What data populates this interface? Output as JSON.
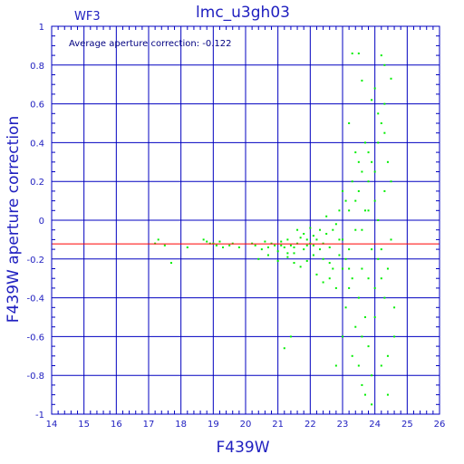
{
  "chart_data": {
    "type": "scatter",
    "title": "lmc_u3gh03",
    "subtitle": "WF3",
    "annotation": "Average aperture correction: -0.122",
    "xlabel": "F439W",
    "ylabel": "F439W aperture correction",
    "xlim": [
      14,
      26
    ],
    "ylim": [
      -1,
      1
    ],
    "xticks": [
      "14",
      "15",
      "16",
      "17",
      "18",
      "19",
      "20",
      "21",
      "22",
      "23",
      "24",
      "25",
      "26"
    ],
    "yticks": [
      "-1",
      "-0.8",
      "-0.6",
      "-0.4",
      "-0.2",
      "0",
      "0.2",
      "0.4",
      "0.6",
      "0.8",
      "1"
    ],
    "grid": true,
    "reference_line": {
      "y": -0.122,
      "color": "#ff0000"
    },
    "point_color": "#00ee00",
    "axis_color": "#0000c0",
    "points": [
      [
        17.2,
        -0.12
      ],
      [
        17.3,
        -0.1
      ],
      [
        17.5,
        -0.13
      ],
      [
        17.7,
        -0.22
      ],
      [
        18.2,
        -0.14
      ],
      [
        18.7,
        -0.1
      ],
      [
        18.8,
        -0.11
      ],
      [
        18.9,
        -0.12
      ],
      [
        19.0,
        -0.12
      ],
      [
        19.1,
        -0.13
      ],
      [
        19.2,
        -0.11
      ],
      [
        19.3,
        -0.14
      ],
      [
        19.5,
        -0.13
      ],
      [
        19.6,
        -0.12
      ],
      [
        19.8,
        -0.14
      ],
      [
        20.2,
        -0.12
      ],
      [
        20.3,
        -0.13
      ],
      [
        20.5,
        -0.15
      ],
      [
        20.6,
        -0.11
      ],
      [
        20.7,
        -0.14
      ],
      [
        20.8,
        -0.12
      ],
      [
        20.9,
        -0.13
      ],
      [
        21.0,
        -0.16
      ],
      [
        21.1,
        -0.11
      ],
      [
        21.2,
        -0.14
      ],
      [
        21.3,
        -0.1
      ],
      [
        21.4,
        -0.13
      ],
      [
        21.5,
        -0.17
      ],
      [
        21.6,
        -0.12
      ],
      [
        21.7,
        -0.09
      ],
      [
        21.8,
        -0.15
      ],
      [
        21.9,
        -0.13
      ],
      [
        20.4,
        -0.2
      ],
      [
        20.7,
        -0.18
      ],
      [
        21.0,
        -0.21
      ],
      [
        21.3,
        -0.19
      ],
      [
        21.5,
        -0.22
      ],
      [
        21.7,
        -0.24
      ],
      [
        21.9,
        -0.21
      ],
      [
        21.6,
        -0.05
      ],
      [
        21.8,
        -0.07
      ],
      [
        22.0,
        -0.04
      ],
      [
        22.1,
        -0.08
      ],
      [
        21.2,
        -0.66
      ],
      [
        21.4,
        -0.6
      ],
      [
        22.0,
        -0.12
      ],
      [
        22.1,
        -0.18
      ],
      [
        22.2,
        -0.1
      ],
      [
        22.3,
        -0.15
      ],
      [
        22.4,
        -0.2
      ],
      [
        22.5,
        -0.07
      ],
      [
        22.6,
        -0.14
      ],
      [
        22.7,
        -0.25
      ],
      [
        22.8,
        -0.02
      ],
      [
        22.9,
        -0.18
      ],
      [
        22.2,
        -0.28
      ],
      [
        22.4,
        -0.32
      ],
      [
        22.6,
        -0.3
      ],
      [
        22.8,
        -0.35
      ],
      [
        22.5,
        0.02
      ],
      [
        22.7,
        -0.05
      ],
      [
        22.9,
        0.05
      ],
      [
        22.3,
        -0.05
      ],
      [
        23.0,
        -0.1
      ],
      [
        23.1,
        -0.2
      ],
      [
        23.2,
        0.05
      ],
      [
        23.3,
        -0.3
      ],
      [
        23.4,
        0.1
      ],
      [
        23.5,
        -0.4
      ],
      [
        23.6,
        -0.05
      ],
      [
        23.7,
        -0.5
      ],
      [
        23.8,
        0.2
      ],
      [
        23.9,
        -0.15
      ],
      [
        23.0,
        0.15
      ],
      [
        23.1,
        -0.45
      ],
      [
        23.2,
        -0.35
      ],
      [
        23.3,
        0.2
      ],
      [
        23.4,
        -0.55
      ],
      [
        23.5,
        0.3
      ],
      [
        23.6,
        -0.25
      ],
      [
        23.7,
        0.4
      ],
      [
        23.8,
        -0.65
      ],
      [
        23.9,
        0.3
      ],
      [
        23.0,
        -0.6
      ],
      [
        23.1,
        0.1
      ],
      [
        23.2,
        -0.25
      ],
      [
        23.3,
        -0.7
      ],
      [
        23.4,
        -0.05
      ],
      [
        23.5,
        0.15
      ],
      [
        23.6,
        -0.6
      ],
      [
        23.7,
        0.05
      ],
      [
        23.8,
        -0.3
      ],
      [
        23.9,
        -0.8
      ],
      [
        23.5,
        -0.75
      ],
      [
        23.7,
        -0.9
      ],
      [
        23.9,
        -0.95
      ],
      [
        23.6,
        -0.85
      ],
      [
        22.8,
        -0.75
      ],
      [
        24.0,
        0.1
      ],
      [
        24.1,
        -0.2
      ],
      [
        24.2,
        0.5
      ],
      [
        24.3,
        -0.4
      ],
      [
        24.4,
        0.3
      ],
      [
        24.5,
        -0.1
      ],
      [
        24.6,
        -0.6
      ],
      [
        24.0,
        -0.5
      ],
      [
        24.1,
        0.4
      ],
      [
        24.2,
        -0.3
      ],
      [
        24.3,
        0.6
      ],
      [
        24.4,
        -0.7
      ],
      [
        24.5,
        0.2
      ],
      [
        24.0,
        0.25
      ],
      [
        24.1,
        0.0
      ],
      [
        24.2,
        -0.15
      ],
      [
        24.3,
        0.45
      ],
      [
        24.4,
        -0.25
      ],
      [
        24.2,
        0.85
      ],
      [
        24.3,
        0.8
      ],
      [
        24.0,
        0.68
      ],
      [
        24.5,
        0.73
      ],
      [
        24.4,
        -0.9
      ],
      [
        24.6,
        -0.45
      ],
      [
        24.2,
        -0.75
      ],
      [
        24.1,
        0.55
      ],
      [
        23.9,
        0.62
      ],
      [
        23.8,
        0.35
      ],
      [
        24.3,
        0.15
      ],
      [
        24.0,
        -0.35
      ],
      [
        23.5,
        0.86
      ],
      [
        23.3,
        0.86
      ],
      [
        23.2,
        0.5
      ],
      [
        23.6,
        0.72
      ],
      [
        23.8,
        0.05
      ],
      [
        23.6,
        0.25
      ],
      [
        23.4,
        0.35
      ],
      [
        23.2,
        -0.15
      ],
      [
        23.0,
        -0.25
      ],
      [
        22.9,
        -0.1
      ],
      [
        22.6,
        -0.22
      ],
      [
        22.4,
        -0.12
      ],
      [
        22.1,
        -0.13
      ],
      [
        21.9,
        -0.1
      ],
      [
        21.5,
        -0.14
      ],
      [
        21.3,
        -0.17
      ],
      [
        21.1,
        -0.13
      ]
    ]
  }
}
